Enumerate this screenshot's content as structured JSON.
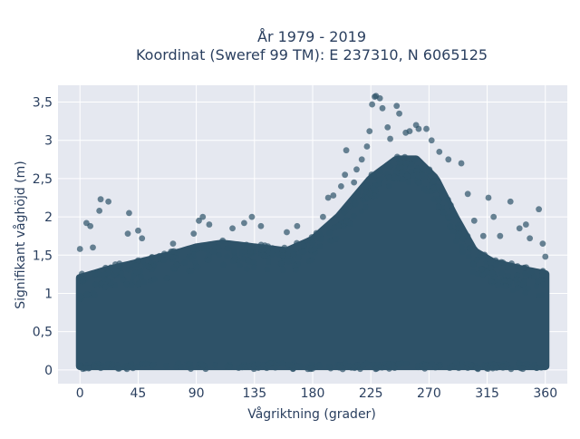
{
  "chart_data": {
    "type": "scatter",
    "title_line1": "År 1979 - 2019",
    "title_line2": "Koordinat (Sweref 99 TM): E 237310, N 6065125",
    "xlabel": "Vågriktning (grader)",
    "ylabel": "Signifikant våghöjd (m)",
    "xlim": [
      -17,
      377
    ],
    "ylim": [
      -0.18,
      3.72
    ],
    "x_ticks": [
      {
        "value": 0,
        "label": "0"
      },
      {
        "value": 45,
        "label": "45"
      },
      {
        "value": 90,
        "label": "90"
      },
      {
        "value": 135,
        "label": "135"
      },
      {
        "value": 180,
        "label": "180"
      },
      {
        "value": 225,
        "label": "225"
      },
      {
        "value": 270,
        "label": "270"
      },
      {
        "value": 315,
        "label": "315"
      },
      {
        "value": 360,
        "label": "360"
      }
    ],
    "y_ticks": [
      {
        "value": 0,
        "label": "0"
      },
      {
        "value": 0.5,
        "label": "0,5"
      },
      {
        "value": 1,
        "label": "1"
      },
      {
        "value": 1.5,
        "label": "1,5"
      },
      {
        "value": 2,
        "label": "2"
      },
      {
        "value": 2.5,
        "label": "2,5"
      },
      {
        "value": 3,
        "label": "3"
      },
      {
        "value": 3.5,
        "label": "3,5"
      }
    ],
    "grid": true,
    "marker_color": "#2e5268",
    "plot_bg": "#e5e8f0",
    "dense_cloud": {
      "lower_bound": 0.05,
      "upper_envelope": [
        {
          "x": 0,
          "y": 1.2
        },
        {
          "x": 20,
          "y": 1.3
        },
        {
          "x": 45,
          "y": 1.4
        },
        {
          "x": 70,
          "y": 1.5
        },
        {
          "x": 90,
          "y": 1.6
        },
        {
          "x": 110,
          "y": 1.65
        },
        {
          "x": 135,
          "y": 1.6
        },
        {
          "x": 160,
          "y": 1.55
        },
        {
          "x": 180,
          "y": 1.7
        },
        {
          "x": 200,
          "y": 2.0
        },
        {
          "x": 225,
          "y": 2.5
        },
        {
          "x": 245,
          "y": 2.75
        },
        {
          "x": 260,
          "y": 2.75
        },
        {
          "x": 275,
          "y": 2.5
        },
        {
          "x": 290,
          "y": 2.0
        },
        {
          "x": 305,
          "y": 1.55
        },
        {
          "x": 320,
          "y": 1.4
        },
        {
          "x": 345,
          "y": 1.3
        },
        {
          "x": 360,
          "y": 1.25
        }
      ]
    },
    "outliers": [
      {
        "x": 0,
        "y": 1.58
      },
      {
        "x": 5,
        "y": 1.92
      },
      {
        "x": 8,
        "y": 1.88
      },
      {
        "x": 15,
        "y": 2.08
      },
      {
        "x": 16,
        "y": 2.23
      },
      {
        "x": 22,
        "y": 2.2
      },
      {
        "x": 10,
        "y": 1.6
      },
      {
        "x": 37,
        "y": 1.78
      },
      {
        "x": 38,
        "y": 2.05
      },
      {
        "x": 48,
        "y": 1.72
      },
      {
        "x": 45,
        "y": 1.82
      },
      {
        "x": 72,
        "y": 1.65
      },
      {
        "x": 88,
        "y": 1.78
      },
      {
        "x": 92,
        "y": 1.95
      },
      {
        "x": 95,
        "y": 2.0
      },
      {
        "x": 100,
        "y": 1.9
      },
      {
        "x": 118,
        "y": 1.85
      },
      {
        "x": 127,
        "y": 1.92
      },
      {
        "x": 133,
        "y": 2.0
      },
      {
        "x": 140,
        "y": 1.88
      },
      {
        "x": 160,
        "y": 1.8
      },
      {
        "x": 168,
        "y": 1.88
      },
      {
        "x": 188,
        "y": 2.0
      },
      {
        "x": 192,
        "y": 2.25
      },
      {
        "x": 196,
        "y": 2.28
      },
      {
        "x": 202,
        "y": 2.4
      },
      {
        "x": 205,
        "y": 2.55
      },
      {
        "x": 206,
        "y": 2.87
      },
      {
        "x": 212,
        "y": 2.45
      },
      {
        "x": 214,
        "y": 2.62
      },
      {
        "x": 218,
        "y": 2.75
      },
      {
        "x": 222,
        "y": 2.92
      },
      {
        "x": 224,
        "y": 3.12
      },
      {
        "x": 226,
        "y": 3.47
      },
      {
        "x": 228,
        "y": 3.57
      },
      {
        "x": 229,
        "y": 3.58
      },
      {
        "x": 234,
        "y": 3.42
      },
      {
        "x": 232,
        "y": 3.55
      },
      {
        "x": 238,
        "y": 3.17
      },
      {
        "x": 240,
        "y": 3.02
      },
      {
        "x": 245,
        "y": 3.45
      },
      {
        "x": 247,
        "y": 3.35
      },
      {
        "x": 252,
        "y": 3.1
      },
      {
        "x": 255,
        "y": 3.12
      },
      {
        "x": 260,
        "y": 3.2
      },
      {
        "x": 262,
        "y": 3.15
      },
      {
        "x": 268,
        "y": 3.15
      },
      {
        "x": 272,
        "y": 3.0
      },
      {
        "x": 278,
        "y": 2.85
      },
      {
        "x": 285,
        "y": 2.75
      },
      {
        "x": 295,
        "y": 2.7
      },
      {
        "x": 300,
        "y": 2.3
      },
      {
        "x": 305,
        "y": 1.95
      },
      {
        "x": 312,
        "y": 1.75
      },
      {
        "x": 316,
        "y": 2.25
      },
      {
        "x": 320,
        "y": 2.0
      },
      {
        "x": 325,
        "y": 1.75
      },
      {
        "x": 333,
        "y": 2.2
      },
      {
        "x": 340,
        "y": 1.85
      },
      {
        "x": 345,
        "y": 1.9
      },
      {
        "x": 348,
        "y": 1.72
      },
      {
        "x": 355,
        "y": 2.1
      },
      {
        "x": 358,
        "y": 1.65
      },
      {
        "x": 360,
        "y": 1.48
      }
    ]
  }
}
